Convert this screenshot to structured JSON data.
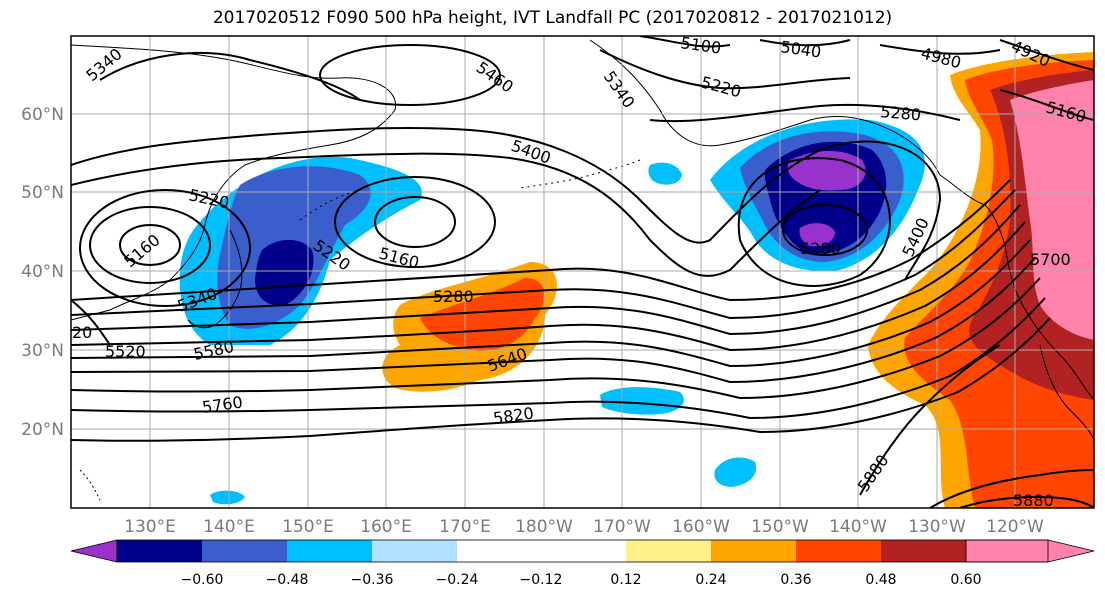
{
  "title": "2017020512 F090 500 hPa height, IVT Landfall PC (2017020812 - 2017021012)",
  "lat_labels": [
    "60°N",
    "50°N",
    "40°N",
    "30°N",
    "20°N"
  ],
  "lon_labels": [
    "130°E",
    "140°E",
    "150°E",
    "160°E",
    "170°E",
    "180°W",
    "170°W",
    "160°W",
    "150°W",
    "140°W",
    "130°W",
    "120°W"
  ],
  "contour_labels": [
    "5340",
    "5460",
    "5100",
    "5040",
    "4980",
    "4920",
    "5340",
    "5220",
    "5280",
    "5160",
    "5400",
    "5220",
    "5160",
    "5220",
    "5160",
    "5280",
    "5280",
    "5400",
    "5700",
    "5340",
    "5520",
    "5580",
    "5640",
    "5760",
    "5820",
    "5880",
    "5880",
    "20"
  ],
  "colorbar": {
    "ticks": [
      "−0.60",
      "−0.48",
      "−0.36",
      "−0.24",
      "−0.12",
      "0.12",
      "0.24",
      "0.36",
      "0.48",
      "0.60"
    ],
    "colors": [
      "#9932cc",
      "#00008b",
      "#3a5fcd",
      "#00bfff",
      "#b0e2ff",
      "#ffffff",
      "#fff08a",
      "#ffa500",
      "#ff4500",
      "#b22222",
      "#ff82ab"
    ]
  }
}
